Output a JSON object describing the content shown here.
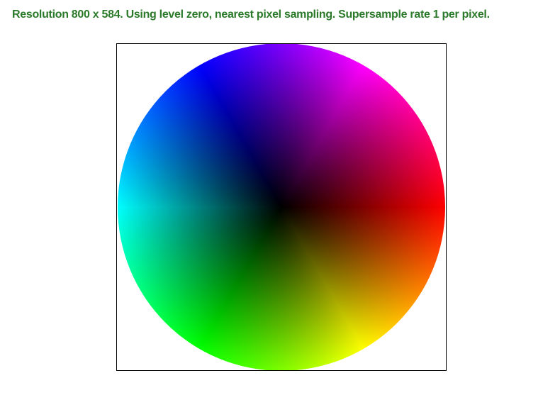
{
  "status": {
    "text": "Resolution 800 x 584. Using level zero, nearest pixel sampling. Supersample rate 1 per pixel.",
    "color": "#2a7a2a"
  },
  "viewport": {
    "frame_color": "#000000",
    "image": "color-wheel"
  },
  "colors": {
    "wheel_stops": [
      "#ff0000",
      "#ff00ff",
      "#0000ff",
      "#00ffff",
      "#00ff00",
      "#ffff00",
      "#ff0000"
    ],
    "center": "#000000"
  }
}
